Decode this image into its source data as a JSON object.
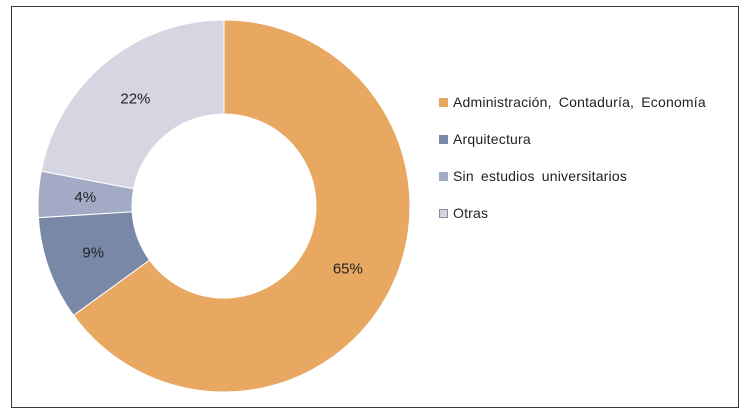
{
  "chart_data": {
    "type": "pie",
    "variant": "donut",
    "title": "",
    "slices": [
      {
        "label": "Administración,  Contaduría,  Economía",
        "value": 65,
        "display": "65%",
        "color": "#E8A862"
      },
      {
        "label": "Arquitectura",
        "value": 9,
        "display": "9%",
        "color": "#7A88A8"
      },
      {
        "label": "Sin estudios universitarios",
        "value": 4,
        "display": "4%",
        "color": "#A3AAC6"
      },
      {
        "label": "Otras",
        "value": 22,
        "display": "22%",
        "color": "#D5D6E2"
      }
    ],
    "legend_position": "right"
  }
}
